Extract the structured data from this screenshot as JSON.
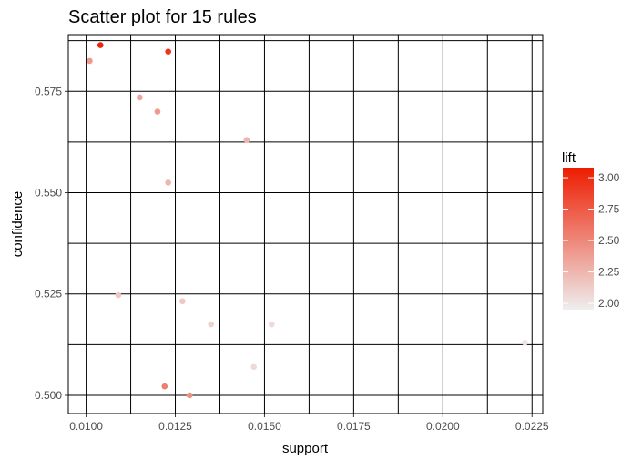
{
  "chart_data": {
    "type": "scatter",
    "title": "Scatter plot for 15 rules",
    "xlabel": "support",
    "ylabel": "confidence",
    "xlim": [
      0.0095,
      0.0228
    ],
    "ylim": [
      0.4955,
      0.589
    ],
    "x_ticks": [
      0.01,
      0.0125,
      0.015,
      0.0175,
      0.02,
      0.0225
    ],
    "x_tick_labels": [
      "0.0100",
      "0.0125",
      "0.0150",
      "0.0175",
      "0.0200",
      "0.0225"
    ],
    "y_ticks": [
      0.5,
      0.525,
      0.55,
      0.575
    ],
    "y_tick_labels": [
      "0.500",
      "0.525",
      "0.550",
      "0.575"
    ],
    "grid": true,
    "color_scale": {
      "name": "lift",
      "low_color": "#eeeeee",
      "high_color": "#ee1c00",
      "range": [
        1.95,
        3.08
      ],
      "breaks": [
        2.0,
        2.25,
        2.5,
        2.75,
        3.0
      ],
      "break_labels": [
        "2.00",
        "2.25",
        "2.50",
        "2.75",
        "3.00"
      ]
    },
    "legend_position": "right",
    "points": [
      {
        "support": 0.0104,
        "confidence": 0.5864,
        "lift": 3.05
      },
      {
        "support": 0.0101,
        "confidence": 0.5825,
        "lift": 2.4
      },
      {
        "support": 0.0123,
        "confidence": 0.5848,
        "lift": 2.95
      },
      {
        "support": 0.0115,
        "confidence": 0.5735,
        "lift": 2.35
      },
      {
        "support": 0.012,
        "confidence": 0.57,
        "lift": 2.4
      },
      {
        "support": 0.0145,
        "confidence": 0.563,
        "lift": 2.25
      },
      {
        "support": 0.0123,
        "confidence": 0.5525,
        "lift": 2.25
      },
      {
        "support": 0.0109,
        "confidence": 0.5247,
        "lift": 2.15
      },
      {
        "support": 0.0127,
        "confidence": 0.5232,
        "lift": 2.15
      },
      {
        "support": 0.0135,
        "confidence": 0.5175,
        "lift": 2.1
      },
      {
        "support": 0.0152,
        "confidence": 0.5175,
        "lift": 2.05
      },
      {
        "support": 0.0223,
        "confidence": 0.513,
        "lift": 2.0
      },
      {
        "support": 0.0147,
        "confidence": 0.507,
        "lift": 2.05
      },
      {
        "support": 0.0122,
        "confidence": 0.5022,
        "lift": 2.55
      },
      {
        "support": 0.0129,
        "confidence": 0.5,
        "lift": 2.45
      }
    ]
  }
}
